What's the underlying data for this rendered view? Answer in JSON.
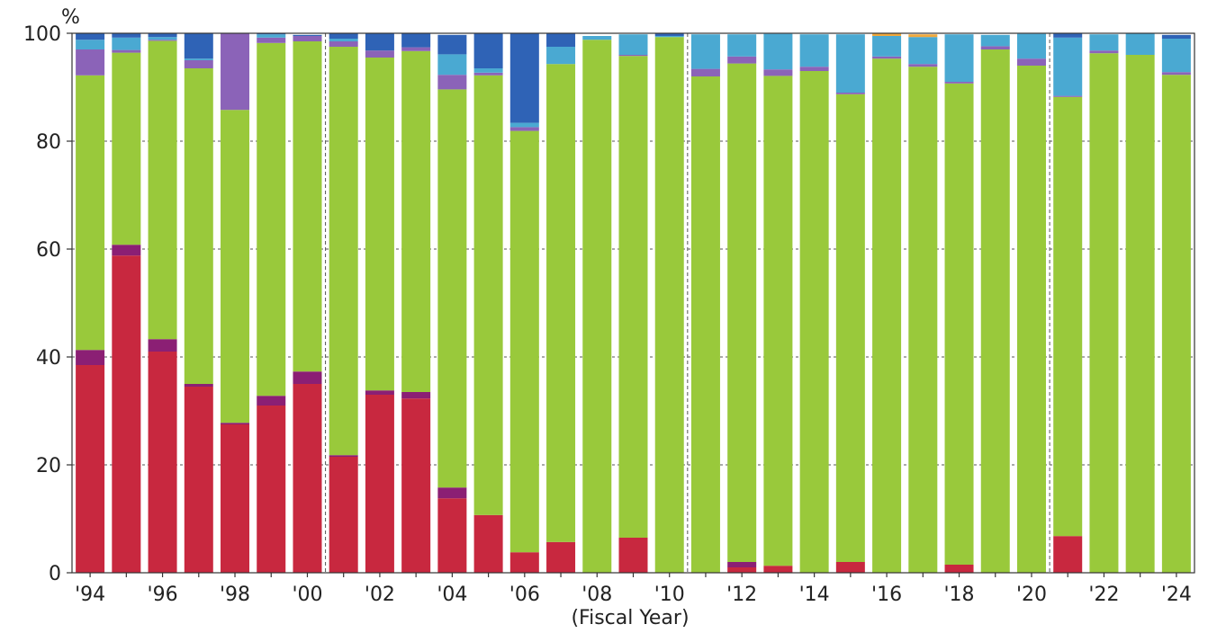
{
  "chart_data": {
    "type": "bar",
    "stacked": true,
    "y_unit": "%",
    "xlabel": "(Fiscal Year)",
    "ylim": [
      0,
      100
    ],
    "yticks": [
      0,
      20,
      40,
      60,
      80,
      100
    ],
    "grid": "horizontal dashed",
    "categories": [
      "'94",
      "'95",
      "'96",
      "'97",
      "'98",
      "'99",
      "'00",
      "'01",
      "'02",
      "'03",
      "'04",
      "'05",
      "'06",
      "'07",
      "'08",
      "'09",
      "'10",
      "'11",
      "'12",
      "'13",
      "'14",
      "'15",
      "'16",
      "'17",
      "'18",
      "'19",
      "'20",
      "'21",
      "'22",
      "'23",
      "'24"
    ],
    "x_tick_labels": [
      "'94",
      "",
      "'96",
      "",
      "'98",
      "",
      "'00",
      "",
      "'02",
      "",
      "'04",
      "",
      "'06",
      "",
      "'08",
      "",
      "'10",
      "",
      "'12",
      "",
      "'14",
      "",
      "'16",
      "",
      "'18",
      "",
      "'20",
      "",
      "'22",
      "",
      "'24"
    ],
    "period_dividers_after": [
      "'00",
      "'10",
      "'20"
    ],
    "series": [
      {
        "color": "#c8283f",
        "values": [
          38.5,
          58.8,
          41.0,
          34.5,
          27.5,
          31.0,
          35.0,
          21.5,
          33.0,
          32.3,
          13.8,
          10.7,
          3.8,
          5.7,
          0,
          6.5,
          0,
          0,
          1.0,
          1.3,
          0,
          2.0,
          0,
          0,
          1.5,
          0,
          0,
          6.8,
          0,
          0,
          0
        ]
      },
      {
        "color": "#8b1f74",
        "values": [
          2.8,
          2.0,
          2.3,
          0.5,
          0.3,
          1.8,
          2.3,
          0.3,
          0.8,
          1.2,
          2.0,
          0,
          0,
          0,
          0,
          0,
          0,
          0,
          1.0,
          0,
          0,
          0,
          0,
          0,
          0,
          0,
          0,
          0,
          0,
          0,
          0
        ]
      },
      {
        "color": "#99c93b",
        "values": [
          50.9,
          35.6,
          55.3,
          58.5,
          58.0,
          65.4,
          61.2,
          75.7,
          61.7,
          63.2,
          73.8,
          81.5,
          78.1,
          88.6,
          98.8,
          89.3,
          99.3,
          92.0,
          92.4,
          90.8,
          93.0,
          86.7,
          95.3,
          93.8,
          89.2,
          97.0,
          94.0,
          81.4,
          96.3,
          96.0,
          92.3
        ]
      },
      {
        "color": "#8b63b8",
        "values": [
          4.8,
          0.5,
          0.2,
          1.5,
          14.2,
          1.0,
          1.0,
          1.0,
          1.3,
          0.7,
          2.7,
          0.5,
          0.7,
          0,
          0,
          0.2,
          0,
          1.4,
          1.3,
          1.2,
          0.8,
          0.3,
          0.4,
          0.5,
          0.3,
          0.6,
          1.3,
          0.2,
          0.5,
          0,
          0.5
        ]
      },
      {
        "color": "#4aa9d2",
        "values": [
          1.8,
          2.3,
          0.5,
          0.3,
          0,
          0.6,
          0,
          0.5,
          0,
          0,
          3.8,
          0.8,
          0.8,
          3.2,
          0.7,
          3.8,
          0.2,
          6.4,
          4.1,
          6.6,
          6.0,
          10.8,
          3.8,
          5.0,
          8.8,
          2.1,
          4.6,
          10.8,
          3.0,
          4.0,
          6.2
        ]
      },
      {
        "color": "#2f63b6",
        "values": [
          1.2,
          0.8,
          0.7,
          4.7,
          0,
          0.2,
          0.2,
          1.0,
          3.2,
          2.6,
          3.6,
          6.5,
          16.6,
          2.5,
          0,
          0,
          0.5,
          0,
          0,
          0,
          0,
          0,
          0,
          0,
          0,
          0,
          0,
          0.8,
          0,
          0,
          0.7
        ]
      },
      {
        "color": "#f0a83c",
        "values": [
          0,
          0,
          0,
          0,
          0,
          0,
          0,
          0,
          0,
          0,
          0,
          0,
          0,
          0,
          0,
          0,
          0,
          0,
          0,
          0,
          0,
          0,
          0.5,
          0.5,
          0,
          0,
          0,
          0,
          0,
          0,
          0
        ]
      }
    ]
  }
}
